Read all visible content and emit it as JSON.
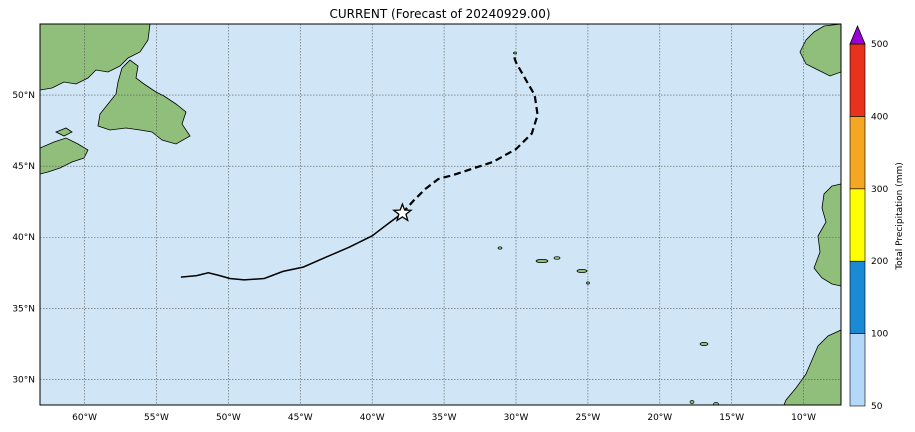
{
  "title": "CURRENT (Forecast of 20240929.00)",
  "map": {
    "ocean_color": "#d0e6f6",
    "land_color": "#8fbf7a",
    "lon_range": [
      -63.1,
      -7.4
    ],
    "lat_range": [
      28.2,
      55.0
    ],
    "lon_ticks": [
      {
        "value": -60,
        "label": "60°W"
      },
      {
        "value": -55,
        "label": "55°W"
      },
      {
        "value": -50,
        "label": "50°W"
      },
      {
        "value": -45,
        "label": "45°W"
      },
      {
        "value": -40,
        "label": "40°W"
      },
      {
        "value": -35,
        "label": "35°W"
      },
      {
        "value": -30,
        "label": "30°W"
      },
      {
        "value": -25,
        "label": "25°W"
      },
      {
        "value": -20,
        "label": "20°W"
      },
      {
        "value": -15,
        "label": "15°W"
      },
      {
        "value": -10,
        "label": "10°W"
      }
    ],
    "lat_ticks": [
      {
        "value": 30,
        "label": "30°N"
      },
      {
        "value": 35,
        "label": "35°N"
      },
      {
        "value": 40,
        "label": "40°N"
      },
      {
        "value": 45,
        "label": "45°N"
      },
      {
        "value": 50,
        "label": "50°N"
      }
    ],
    "grid": "dotted",
    "track_past": [
      [
        -53.3,
        37.2
      ],
      [
        -52.2,
        37.3
      ],
      [
        -51.4,
        37.5
      ],
      [
        -50.6,
        37.3
      ],
      [
        -49.9,
        37.1
      ],
      [
        -48.9,
        37.0
      ],
      [
        -47.5,
        37.1
      ],
      [
        -46.2,
        37.6
      ],
      [
        -44.8,
        37.9
      ],
      [
        -43.2,
        38.6
      ],
      [
        -41.6,
        39.3
      ],
      [
        -40.0,
        40.1
      ],
      [
        -38.7,
        41.1
      ],
      [
        -37.9,
        41.7
      ]
    ],
    "track_forecast": [
      [
        -37.9,
        41.7
      ],
      [
        -37.1,
        42.6
      ],
      [
        -36.3,
        43.4
      ],
      [
        -35.4,
        44.1
      ],
      [
        -34.3,
        44.4
      ],
      [
        -33.1,
        44.8
      ],
      [
        -31.6,
        45.3
      ],
      [
        -30.0,
        46.2
      ],
      [
        -28.9,
        47.3
      ],
      [
        -28.5,
        48.6
      ],
      [
        -28.7,
        50.0
      ],
      [
        -29.5,
        51.4
      ],
      [
        -30.0,
        52.3
      ],
      [
        -30.2,
        52.9
      ]
    ],
    "current_position": [
      -37.9,
      41.7
    ],
    "storm_marker": "star-icon"
  },
  "colorbar": {
    "label": "Total Precipitation (mm)",
    "levels": [
      {
        "value": "50",
        "color": "#b4d8f8"
      },
      {
        "value": "100",
        "color": "#1a8ad4"
      },
      {
        "value": "200",
        "color": "#ffff00"
      },
      {
        "value": "300",
        "color": "#f5a623"
      },
      {
        "value": "400",
        "color": "#e8321e"
      },
      {
        "value": "500",
        "color": "#9a00d8"
      }
    ],
    "extend": "max"
  }
}
